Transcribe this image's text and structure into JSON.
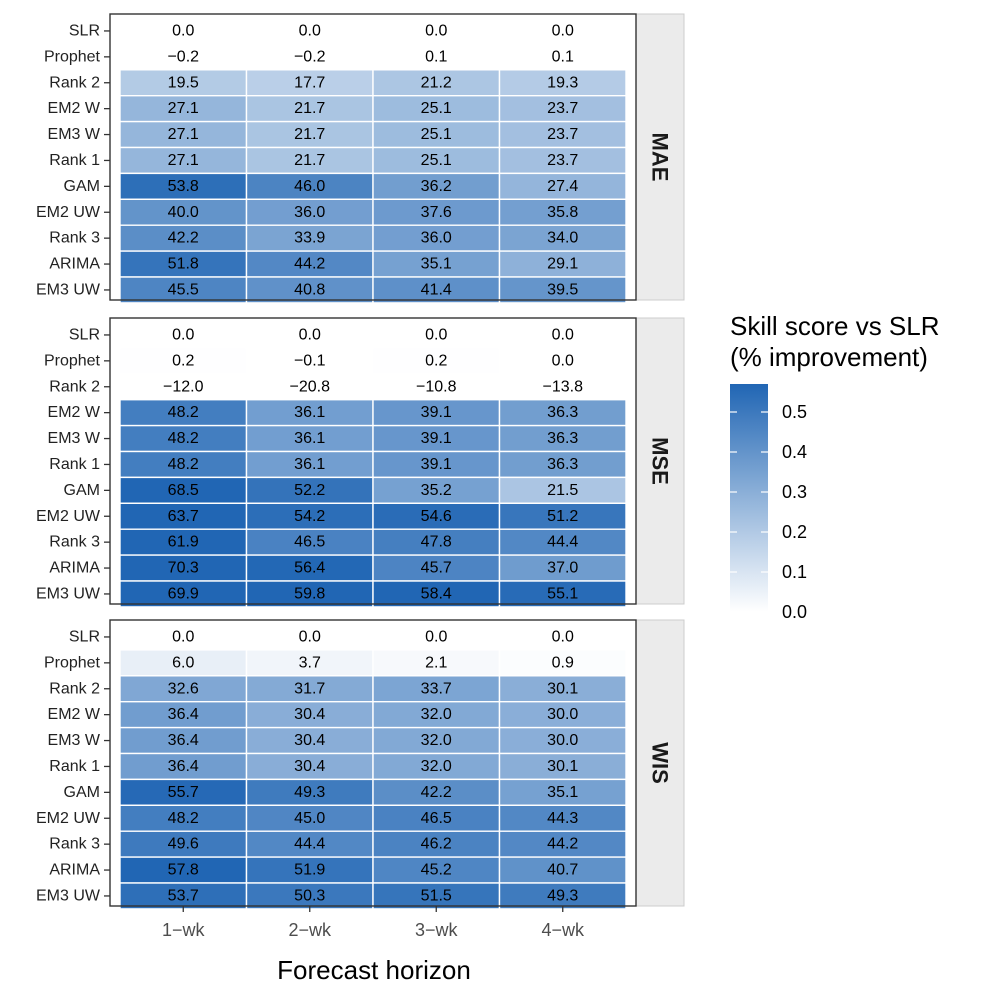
{
  "chart_data": {
    "type": "heatmap",
    "xlabel": "Forecast horizon",
    "x_categories": [
      "1−wk",
      "2−wk",
      "3−wk",
      "4−wk"
    ],
    "y_categories": [
      "SLR",
      "Prophet",
      "Rank 2",
      "EM2 W",
      "EM3 W",
      "Rank 1",
      "GAM",
      "EM2 UW",
      "Rank 3",
      "ARIMA",
      "EM3 UW"
    ],
    "legend": {
      "title_line1": "Skill score vs SLR",
      "title_line2": "(% improvement)",
      "ticks": [
        "0.0",
        "0.1",
        "0.2",
        "0.3",
        "0.4",
        "0.5"
      ],
      "tick_values": [
        0.0,
        0.1,
        0.2,
        0.3,
        0.4,
        0.5
      ],
      "range": [
        0.0,
        0.57
      ],
      "color_low": "#ffffff",
      "color_high": "#2166b4",
      "placement": "right"
    },
    "panels": [
      {
        "strip": "MAE",
        "values": [
          [
            0.0,
            0.0,
            0.0,
            0.0
          ],
          [
            -0.2,
            -0.2,
            0.1,
            0.1
          ],
          [
            19.5,
            17.7,
            21.2,
            19.3
          ],
          [
            27.1,
            21.7,
            25.1,
            23.7
          ],
          [
            27.1,
            21.7,
            25.1,
            23.7
          ],
          [
            27.1,
            21.7,
            25.1,
            23.7
          ],
          [
            53.8,
            46.0,
            36.2,
            27.4
          ],
          [
            40.0,
            36.0,
            37.6,
            35.8
          ],
          [
            42.2,
            33.9,
            36.0,
            34.0
          ],
          [
            51.8,
            44.2,
            35.1,
            29.1
          ],
          [
            45.5,
            40.8,
            41.4,
            39.5
          ]
        ],
        "labels": [
          [
            "0.0",
            "0.0",
            "0.0",
            "0.0"
          ],
          [
            "−0.2",
            "−0.2",
            "0.1",
            "0.1"
          ],
          [
            "19.5",
            "17.7",
            "21.2",
            "19.3"
          ],
          [
            "27.1",
            "21.7",
            "25.1",
            "23.7"
          ],
          [
            "27.1",
            "21.7",
            "25.1",
            "23.7"
          ],
          [
            "27.1",
            "21.7",
            "25.1",
            "23.7"
          ],
          [
            "53.8",
            "46.0",
            "36.2",
            "27.4"
          ],
          [
            "40.0",
            "36.0",
            "37.6",
            "35.8"
          ],
          [
            "42.2",
            "33.9",
            "36.0",
            "34.0"
          ],
          [
            "51.8",
            "44.2",
            "35.1",
            "29.1"
          ],
          [
            "45.5",
            "40.8",
            "41.4",
            "39.5"
          ]
        ]
      },
      {
        "strip": "MSE",
        "values": [
          [
            0.0,
            0.0,
            0.0,
            0.0
          ],
          [
            0.2,
            -0.1,
            0.2,
            0.0
          ],
          [
            -12.0,
            -20.8,
            -10.8,
            -13.8
          ],
          [
            48.2,
            36.1,
            39.1,
            36.3
          ],
          [
            48.2,
            36.1,
            39.1,
            36.3
          ],
          [
            48.2,
            36.1,
            39.1,
            36.3
          ],
          [
            68.5,
            52.2,
            35.2,
            21.5
          ],
          [
            63.7,
            54.2,
            54.6,
            51.2
          ],
          [
            61.9,
            46.5,
            47.8,
            44.4
          ],
          [
            70.3,
            56.4,
            45.7,
            37.0
          ],
          [
            69.9,
            59.8,
            58.4,
            55.1
          ]
        ],
        "labels": [
          [
            "0.0",
            "0.0",
            "0.0",
            "0.0"
          ],
          [
            "0.2",
            "−0.1",
            "0.2",
            "0.0"
          ],
          [
            "−12.0",
            "−20.8",
            "−10.8",
            "−13.8"
          ],
          [
            "48.2",
            "36.1",
            "39.1",
            "36.3"
          ],
          [
            "48.2",
            "36.1",
            "39.1",
            "36.3"
          ],
          [
            "48.2",
            "36.1",
            "39.1",
            "36.3"
          ],
          [
            "68.5",
            "52.2",
            "35.2",
            "21.5"
          ],
          [
            "63.7",
            "54.2",
            "54.6",
            "51.2"
          ],
          [
            "61.9",
            "46.5",
            "47.8",
            "44.4"
          ],
          [
            "70.3",
            "56.4",
            "45.7",
            "37.0"
          ],
          [
            "69.9",
            "59.8",
            "58.4",
            "55.1"
          ]
        ]
      },
      {
        "strip": "WIS",
        "values": [
          [
            0.0,
            0.0,
            0.0,
            0.0
          ],
          [
            6.0,
            3.7,
            2.1,
            0.9
          ],
          [
            32.6,
            31.7,
            33.7,
            30.1
          ],
          [
            36.4,
            30.4,
            32.0,
            30.0
          ],
          [
            36.4,
            30.4,
            32.0,
            30.0
          ],
          [
            36.4,
            30.4,
            32.0,
            30.1
          ],
          [
            55.7,
            49.3,
            42.2,
            35.1
          ],
          [
            48.2,
            45.0,
            46.5,
            44.3
          ],
          [
            49.6,
            44.4,
            46.2,
            44.2
          ],
          [
            57.8,
            51.9,
            45.2,
            40.7
          ],
          [
            53.7,
            50.3,
            51.5,
            49.3
          ]
        ],
        "labels": [
          [
            "0.0",
            "0.0",
            "0.0",
            "0.0"
          ],
          [
            "6.0",
            "3.7",
            "2.1",
            "0.9"
          ],
          [
            "32.6",
            "31.7",
            "33.7",
            "30.1"
          ],
          [
            "36.4",
            "30.4",
            "32.0",
            "30.0"
          ],
          [
            "36.4",
            "30.4",
            "32.0",
            "30.0"
          ],
          [
            "36.4",
            "30.4",
            "32.0",
            "30.1"
          ],
          [
            "55.7",
            "49.3",
            "42.2",
            "35.1"
          ],
          [
            "48.2",
            "45.0",
            "46.5",
            "44.3"
          ],
          [
            "49.6",
            "44.4",
            "46.2",
            "44.2"
          ],
          [
            "57.8",
            "51.9",
            "45.2",
            "40.7"
          ],
          [
            "53.7",
            "50.3",
            "51.5",
            "49.3"
          ]
        ]
      }
    ]
  }
}
